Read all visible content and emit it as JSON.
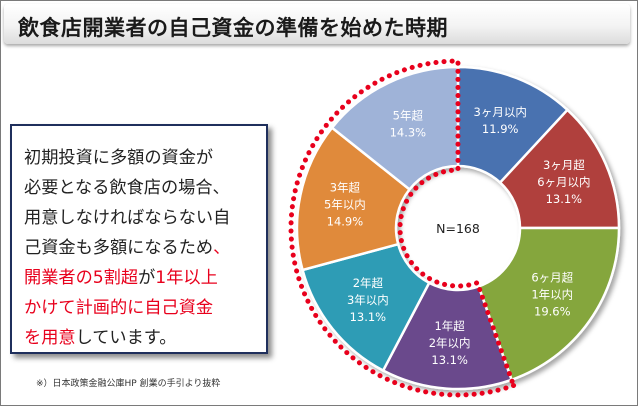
{
  "title": "飲食店開業者の自己資金の準備を始めた時期",
  "textbox": {
    "lines": [
      {
        "parts": [
          {
            "text": "初期投資に多額の資金が",
            "highlight": false
          }
        ]
      },
      {
        "parts": [
          {
            "text": "必要となる飲食店の場合、",
            "highlight": false
          }
        ]
      },
      {
        "parts": [
          {
            "text": "用意しなければならない自",
            "highlight": false
          }
        ]
      },
      {
        "parts": [
          {
            "text": "己資金も多額になるため",
            "highlight": false
          },
          {
            "text": "、",
            "highlight": true
          }
        ]
      },
      {
        "parts": [
          {
            "text": "開業者の5割超",
            "highlight": true
          },
          {
            "text": "が",
            "highlight": false
          },
          {
            "text": "1年以上",
            "highlight": true
          }
        ]
      },
      {
        "parts": [
          {
            "text": "かけて計画的に自己資金",
            "highlight": true
          }
        ]
      },
      {
        "parts": [
          {
            "text": "を用意",
            "highlight": true
          },
          {
            "text": "しています。",
            "highlight": false
          }
        ]
      }
    ]
  },
  "footnote": "※）日本政策金融公庫HP 創業の手引より抜粋",
  "chart_data": {
    "type": "pie",
    "variant": "donut",
    "center_label": "N=168",
    "unit": "%",
    "highlight_color": "#e8001c",
    "highlight_from_slice": 3,
    "slices": [
      {
        "label_lines": [
          "3ヶ月以内"
        ],
        "value": 11.9,
        "value_text": "11.9%",
        "color": "#4a72b0"
      },
      {
        "label_lines": [
          "3ヶ月超",
          "6ヶ月以内"
        ],
        "value": 13.1,
        "value_text": "13.1%",
        "color": "#b0413e"
      },
      {
        "label_lines": [
          "6ヶ月超",
          "1年以内"
        ],
        "value": 19.6,
        "value_text": "19.6%",
        "color": "#85a63e"
      },
      {
        "label_lines": [
          "1年超",
          "2年以内"
        ],
        "value": 13.1,
        "value_text": "13.1%",
        "color": "#6a4a8c"
      },
      {
        "label_lines": [
          "2年超",
          "3年以内"
        ],
        "value": 13.1,
        "value_text": "13.1%",
        "color": "#2f9cb5"
      },
      {
        "label_lines": [
          "3年超",
          "5年以内"
        ],
        "value": 14.9,
        "value_text": "14.9%",
        "color": "#e08a3a"
      },
      {
        "label_lines": [
          "5年超"
        ],
        "value": 14.3,
        "value_text": "14.3%",
        "color": "#9fb3d8"
      }
    ]
  }
}
